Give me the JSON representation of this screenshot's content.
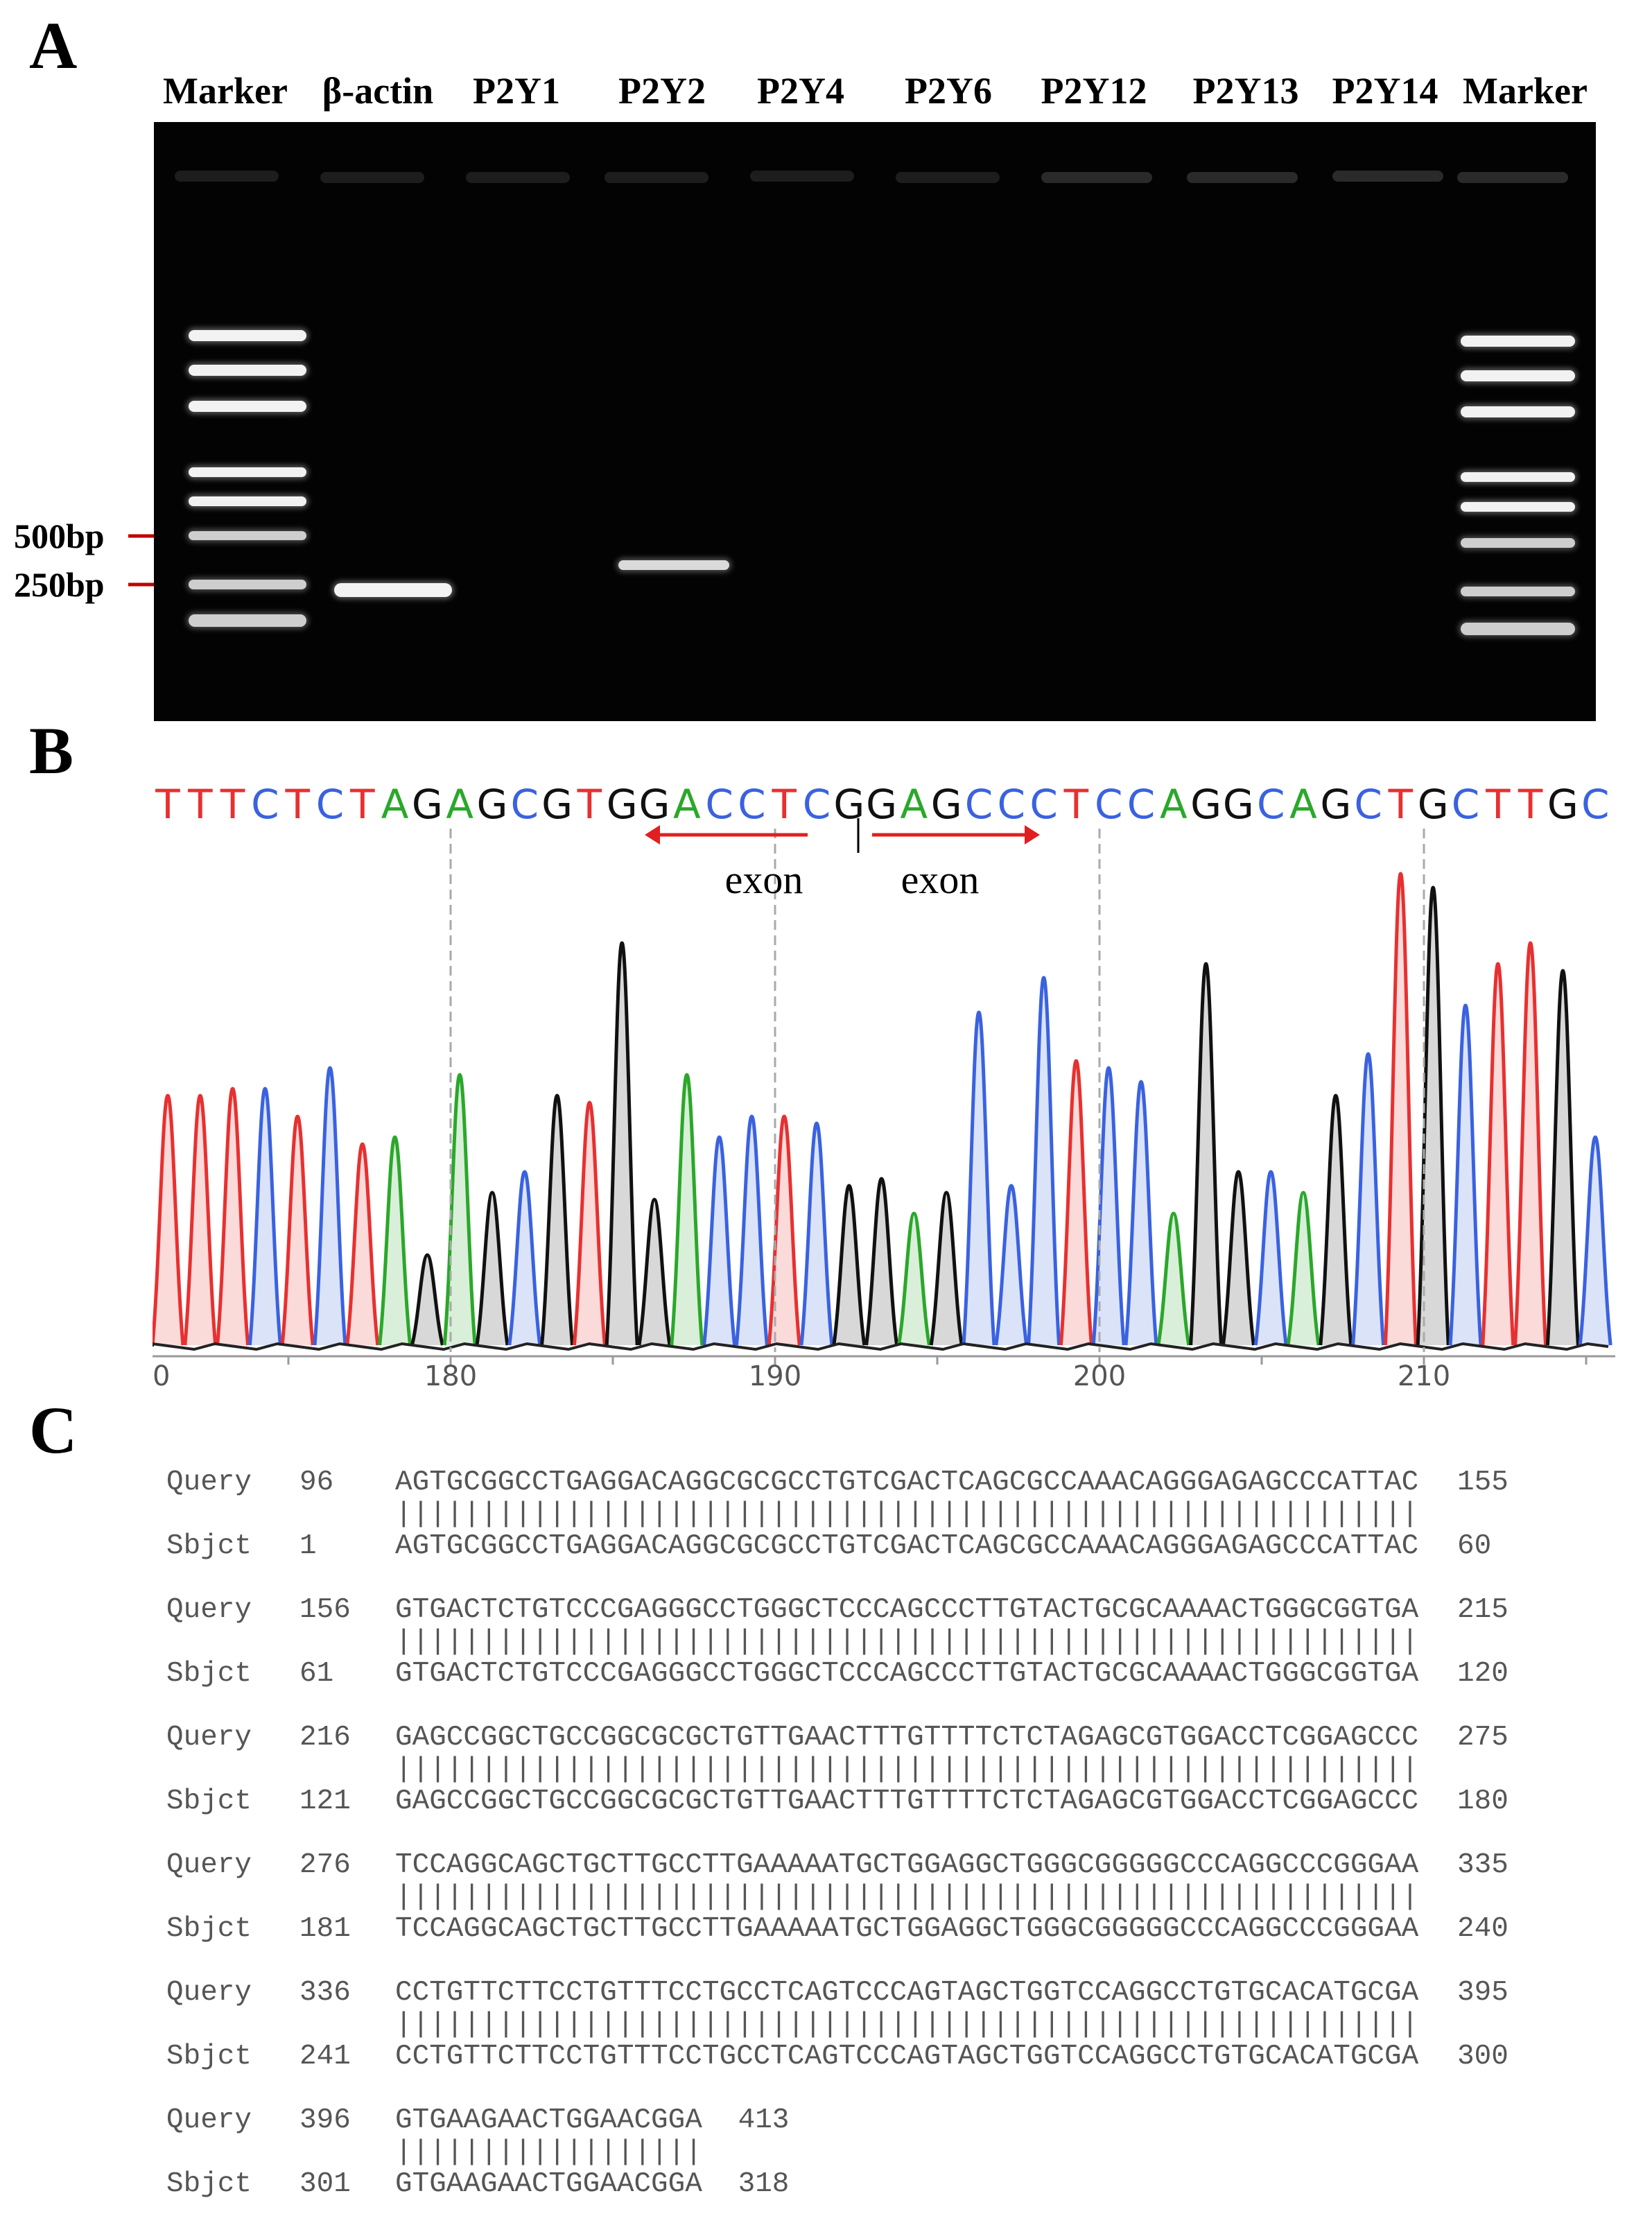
{
  "panels": {
    "a": "A",
    "b": "B",
    "c": "C"
  },
  "gel": {
    "lanes": [
      "Marker",
      "β-actin",
      "P2Y1",
      "P2Y2",
      "P2Y4",
      "P2Y6",
      "P2Y12",
      "P2Y13",
      "P2Y14",
      "Marker"
    ],
    "size_markers": [
      "500bp",
      "250bp"
    ],
    "arrow_color": "#c00000"
  },
  "sequencing": {
    "bases": "TTTCTCTAGAGCGTGGACCTCGGAGCCCTCCAGGCAGCTGCTTGC",
    "exon_left_label": "exon",
    "exon_right_label": "exon",
    "axis_ticks": [
      "180",
      "190",
      "200",
      "210"
    ],
    "axis_left_partial": "0",
    "colors": {
      "A": "#2aa82a",
      "C": "#3a62e0",
      "G": "#111111",
      "T": "#e83030",
      "arrow": "#e02020"
    }
  },
  "alignment": {
    "blocks": [
      {
        "q_label": "Query",
        "q_start": "96",
        "q_seq": "AGTGCGGCCTGAGGACAGGCGCGCCTGTCGACTCAGCGCCAAACAGGGAGAGCCCATTAC",
        "q_end": "155",
        "bars": "||||||||||||||||||||||||||||||||||||||||||||||||||||||||||||",
        "s_label": "Sbjct",
        "s_start": "1",
        "s_seq": "AGTGCGGCCTGAGGACAGGCGCGCCTGTCGACTCAGCGCCAAACAGGGAGAGCCCATTAC",
        "s_end": "60"
      },
      {
        "q_label": "Query",
        "q_start": "156",
        "q_seq": "GTGACTCTGTCCCGAGGGCCTGGGCTCCCAGCCCTTGTACTGCGCAAAACTGGGCGGTGA",
        "q_end": "215",
        "bars": "||||||||||||||||||||||||||||||||||||||||||||||||||||||||||||",
        "s_label": "Sbjct",
        "s_start": "61",
        "s_seq": "GTGACTCTGTCCCGAGGGCCTGGGCTCCCAGCCCTTGTACTGCGCAAAACTGGGCGGTGA",
        "s_end": "120"
      },
      {
        "q_label": "Query",
        "q_start": "216",
        "q_seq": "GAGCCGGCTGCCGGCGCGCTGTTGAACTTTGTTTTCTCTAGAGCGTGGACCTCGGAGCCC",
        "q_end": "275",
        "bars": "||||||||||||||||||||||||||||||||||||||||||||||||||||||||||||",
        "s_label": "Sbjct",
        "s_start": "121",
        "s_seq": "GAGCCGGCTGCCGGCGCGCTGTTGAACTTTGTTTTCTCTAGAGCGTGGACCTCGGAGCCC",
        "s_end": "180"
      },
      {
        "q_label": "Query",
        "q_start": "276",
        "q_seq": "TCCAGGCAGCTGCTTGCCTTGAAAAATGCTGGAGGCTGGGCGGGGGCCCAGGCCCGGGAA",
        "q_end": "335",
        "bars": "||||||||||||||||||||||||||||||||||||||||||||||||||||||||||||",
        "s_label": "Sbjct",
        "s_start": "181",
        "s_seq": "TCCAGGCAGCTGCTTGCCTTGAAAAATGCTGGAGGCTGGGCGGGGGCCCAGGCCCGGGAA",
        "s_end": "240"
      },
      {
        "q_label": "Query",
        "q_start": "336",
        "q_seq": "CCTGTTCTTCCTGTTTCCTGCCTCAGTCCCAGTAGCTGGTCCAGGCCTGTGCACATGCGA",
        "q_end": "395",
        "bars": "||||||||||||||||||||||||||||||||||||||||||||||||||||||||||||",
        "s_label": "Sbjct",
        "s_start": "241",
        "s_seq": "CCTGTTCTTCCTGTTTCCTGCCTCAGTCCCAGTAGCTGGTCCAGGCCTGTGCACATGCGA",
        "s_end": "300"
      },
      {
        "q_label": "Query",
        "q_start": "396",
        "q_seq": "GTGAAGAACTGGAACGGA",
        "q_end": "413",
        "bars": "||||||||||||||||||",
        "s_label": "Sbjct",
        "s_start": "301",
        "s_seq": "GTGAAGAACTGGAACGGA",
        "s_end": "318"
      }
    ]
  }
}
